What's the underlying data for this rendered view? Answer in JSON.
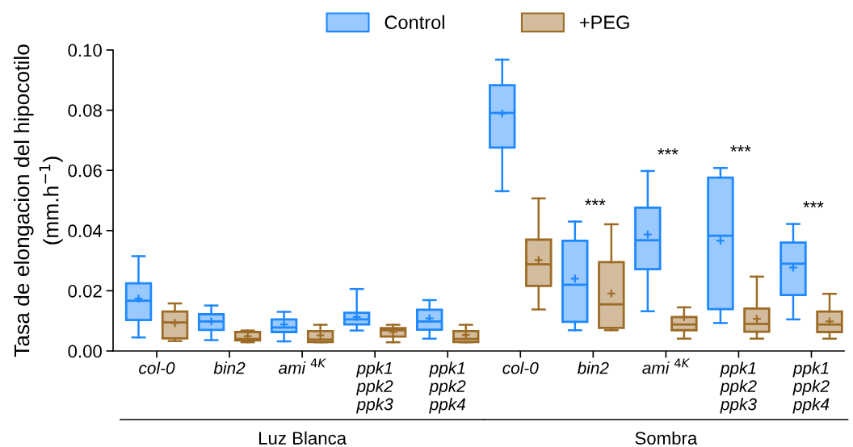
{
  "chart_data": {
    "type": "box",
    "ylabel": "Tasa de elongacion del hipocotilo\n(mm.h$^{−1}$)",
    "categories": [
      "col-0",
      "bin2",
      "ami $^{4K}$",
      "ppk1\nppk2\nppk3",
      "ppk1\nppk2\nppk4",
      "col-0",
      "bin2",
      "ami $^{4K}$",
      "ppk1\nppk2\nppk3",
      "ppk1\nppk2\nppk4"
    ],
    "ylim": [
      0,
      0.1
    ],
    "yticks": [
      {
        "value": 0,
        "label": "0.00"
      },
      {
        "value": 0.02,
        "label": "0.02"
      },
      {
        "value": 0.04,
        "label": "0.04"
      },
      {
        "value": 0.06,
        "label": "0.06"
      },
      {
        "value": 0.08,
        "label": "0.08"
      },
      {
        "value": 0.1,
        "label": "0.10"
      }
    ],
    "grid": false,
    "legend": "top",
    "series": [
      {
        "name": "Control",
        "color": "#1e88ff",
        "value_labels": [
          null,
          null,
          null,
          null,
          null,
          null,
          "***",
          "***",
          "***",
          "***"
        ],
        "boxes": [
          {
            "low": 0.0045,
            "q1": 0.0103,
            "median": 0.0167,
            "q3": 0.0225,
            "high": 0.0315,
            "mean": 0.0174
          },
          {
            "low": 0.0036,
            "q1": 0.007,
            "median": 0.0098,
            "q3": 0.0122,
            "high": 0.0151,
            "mean": 0.0098
          },
          {
            "low": 0.0032,
            "q1": 0.0063,
            "median": 0.0078,
            "q3": 0.0105,
            "high": 0.013,
            "mean": 0.0088
          },
          {
            "low": 0.0068,
            "q1": 0.0088,
            "median": 0.0105,
            "q3": 0.0127,
            "high": 0.0206,
            "mean": 0.0113
          },
          {
            "low": 0.0041,
            "q1": 0.0071,
            "median": 0.0098,
            "q3": 0.0137,
            "high": 0.0169,
            "mean": 0.0108
          },
          {
            "low": 0.0531,
            "q1": 0.0676,
            "median": 0.0791,
            "q3": 0.0883,
            "high": 0.0968,
            "mean": 0.0789
          },
          {
            "low": 0.0069,
            "q1": 0.0097,
            "median": 0.022,
            "q3": 0.0366,
            "high": 0.043,
            "mean": 0.024
          },
          {
            "low": 0.0132,
            "q1": 0.0272,
            "median": 0.0368,
            "q3": 0.0476,
            "high": 0.0598,
            "mean": 0.0387
          },
          {
            "low": 0.0093,
            "q1": 0.0139,
            "median": 0.0383,
            "q3": 0.0576,
            "high": 0.0608,
            "mean": 0.0366
          },
          {
            "low": 0.0105,
            "q1": 0.0186,
            "median": 0.029,
            "q3": 0.036,
            "high": 0.0422,
            "mean": 0.0277
          }
        ]
      },
      {
        "name": "+PEG",
        "color": "#9c6b26",
        "boxes": [
          {
            "low": 0.0033,
            "q1": 0.0042,
            "median": 0.0095,
            "q3": 0.0131,
            "high": 0.0158,
            "mean": 0.0093
          },
          {
            "low": 0.0029,
            "q1": 0.0035,
            "median": 0.004,
            "q3": 0.0063,
            "high": 0.0068,
            "mean": 0.0049
          },
          {
            "low": 0.0029,
            "q1": 0.003,
            "median": 0.0038,
            "q3": 0.0066,
            "high": 0.0087,
            "mean": 0.0052
          },
          {
            "low": 0.0029,
            "q1": 0.0048,
            "median": 0.0069,
            "q3": 0.0076,
            "high": 0.0087,
            "mean": 0.0063
          },
          {
            "low": 0.0029,
            "q1": 0.003,
            "median": 0.004,
            "q3": 0.0066,
            "high": 0.0087,
            "mean": 0.0053
          },
          {
            "low": 0.0138,
            "q1": 0.0216,
            "median": 0.0288,
            "q3": 0.037,
            "high": 0.0507,
            "mean": 0.0302
          },
          {
            "low": 0.0069,
            "q1": 0.0077,
            "median": 0.0155,
            "q3": 0.0295,
            "high": 0.0421,
            "mean": 0.0191
          },
          {
            "low": 0.0041,
            "q1": 0.0069,
            "median": 0.0088,
            "q3": 0.0113,
            "high": 0.0145,
            "mean": 0.0112
          },
          {
            "low": 0.0041,
            "q1": 0.0064,
            "median": 0.009,
            "q3": 0.0141,
            "high": 0.0247,
            "mean": 0.0107
          },
          {
            "low": 0.0041,
            "q1": 0.0063,
            "median": 0.0088,
            "q3": 0.0131,
            "high": 0.019,
            "mean": 0.0098
          }
        ]
      }
    ],
    "annotations": [
      "Luz Blanca",
      "Sombra"
    ]
  }
}
